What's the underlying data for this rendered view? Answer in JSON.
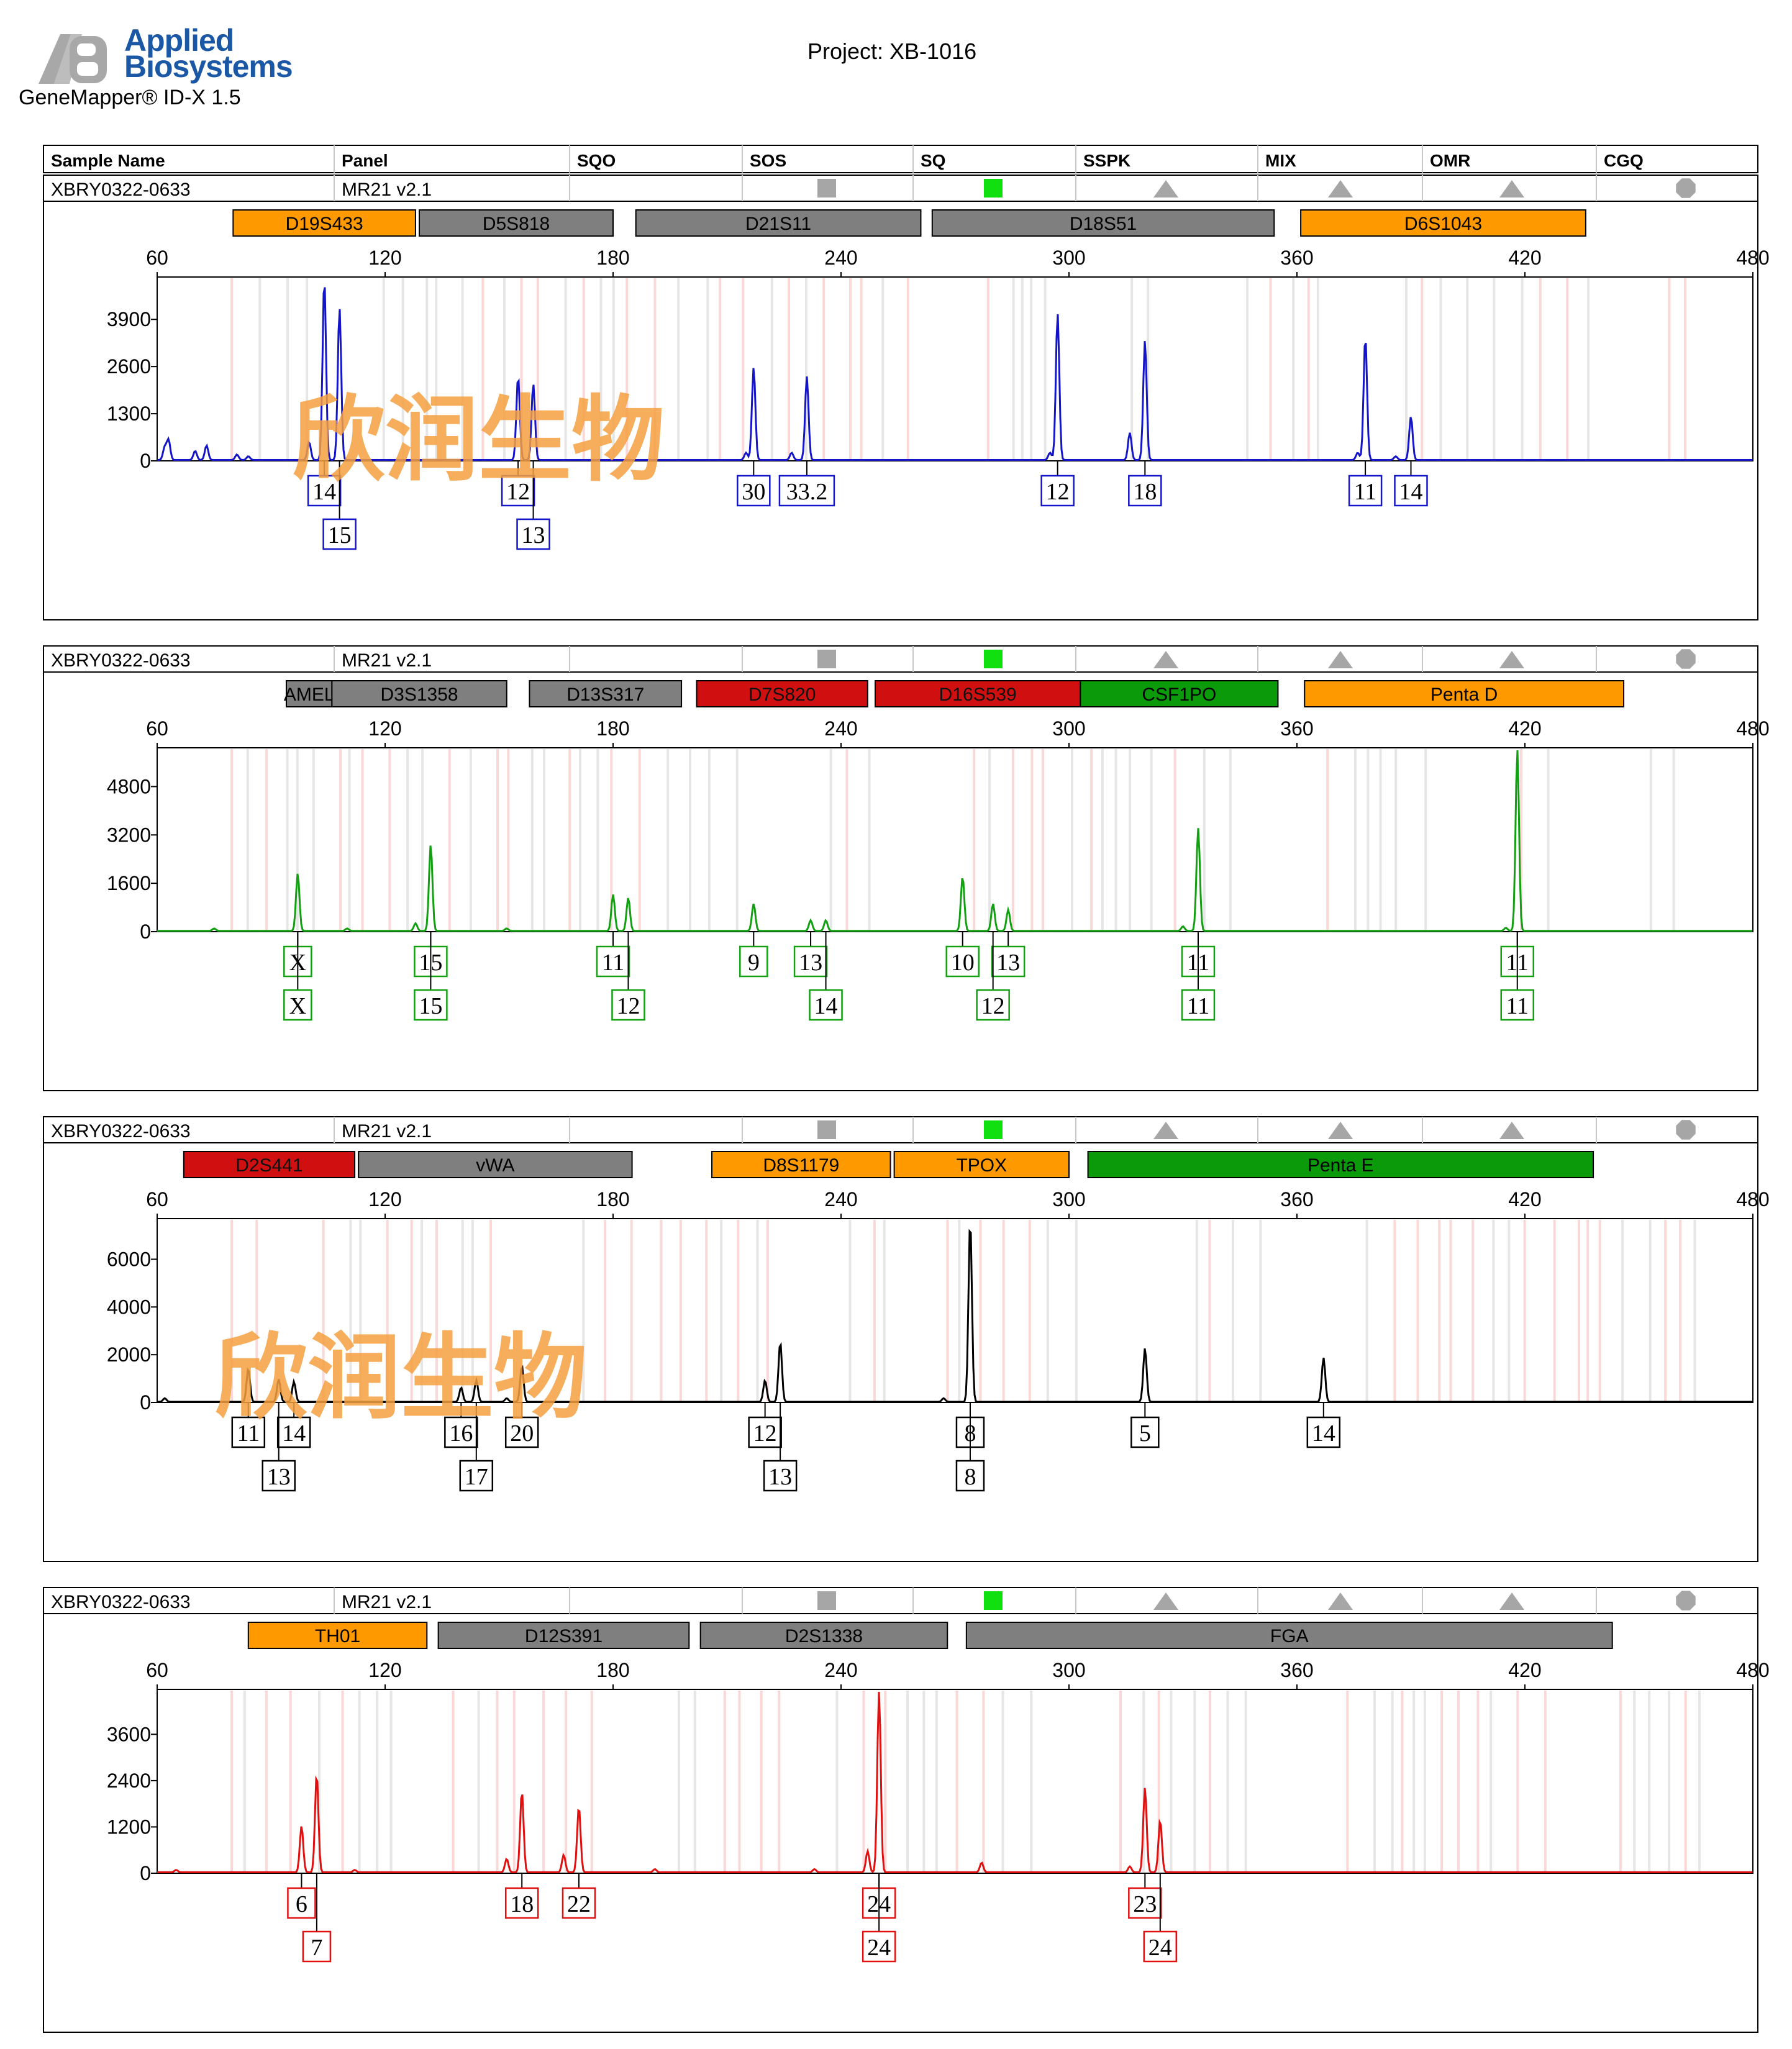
{
  "header": {
    "brand_line1": "Applied",
    "brand_line2": "Biosystems",
    "product": "GeneMapper® ID-X  1.5",
    "project": "Project: XB-1016"
  },
  "table_header": [
    "Sample Name",
    "Panel",
    "SQO",
    "SOS",
    "SQ",
    "SSPK",
    "MIX",
    "OMR",
    "CGQ"
  ],
  "watermark": "欣润生物",
  "colors": {
    "blue": "#1414c8",
    "green": "#12a012",
    "black": "#000000",
    "red": "#e01010",
    "marker_orange": "#ff9900",
    "marker_gray": "#7f7f7f",
    "marker_red": "#d01010",
    "marker_green": "#0a9a0a",
    "sq_green": "#10e010",
    "indicator_gray": "#a6a6a6",
    "watermark": "#f5a040"
  },
  "chart_data": [
    {
      "type": "line",
      "sample": "XBRY0322-0633",
      "panel": "MR21  v2.1",
      "dye": "blue",
      "xlim": [
        60,
        480
      ],
      "xticks": [
        60,
        120,
        180,
        240,
        300,
        360,
        420,
        480
      ],
      "yticks": [
        0,
        1300,
        2600,
        3900
      ],
      "ylim": [
        0,
        5000
      ],
      "markers": [
        {
          "name": "D19S433",
          "start": 80,
          "end": 128,
          "color": "orange"
        },
        {
          "name": "D5S818",
          "start": 129,
          "end": 180,
          "color": "gray"
        },
        {
          "name": "D21S11",
          "start": 186,
          "end": 261,
          "color": "gray"
        },
        {
          "name": "D18S51",
          "start": 264,
          "end": 354,
          "color": "gray"
        },
        {
          "name": "D6S1043",
          "start": 361,
          "end": 436,
          "color": "orange"
        }
      ],
      "peaks": [
        {
          "x": 104,
          "y": 5000
        },
        {
          "x": 108,
          "y": 4200
        },
        {
          "x": 100,
          "y": 500
        },
        {
          "x": 155,
          "y": 2300
        },
        {
          "x": 159,
          "y": 2100
        },
        {
          "x": 217,
          "y": 2550
        },
        {
          "x": 231,
          "y": 2300
        },
        {
          "x": 227,
          "y": 200
        },
        {
          "x": 215,
          "y": 200
        },
        {
          "x": 297,
          "y": 4050
        },
        {
          "x": 295,
          "y": 200
        },
        {
          "x": 320,
          "y": 3300
        },
        {
          "x": 316,
          "y": 750
        },
        {
          "x": 378,
          "y": 3400
        },
        {
          "x": 376,
          "y": 200
        },
        {
          "x": 390,
          "y": 1200
        },
        {
          "x": 386,
          "y": 100
        },
        {
          "x": 62,
          "y": 350
        },
        {
          "x": 63,
          "y": 550
        },
        {
          "x": 70,
          "y": 250
        },
        {
          "x": 73,
          "y": 400
        },
        {
          "x": 81,
          "y": 150
        },
        {
          "x": 84,
          "y": 100
        }
      ],
      "calls": [
        {
          "label": "14",
          "x": 104,
          "row": 1
        },
        {
          "label": "15",
          "x": 108,
          "row": 2
        },
        {
          "label": "12",
          "x": 155,
          "row": 1
        },
        {
          "label": "13",
          "x": 159,
          "row": 2
        },
        {
          "label": "30",
          "x": 217,
          "row": 1
        },
        {
          "label": "33.2",
          "x": 231,
          "row": 1
        },
        {
          "label": "12",
          "x": 297,
          "row": 1
        },
        {
          "label": "18",
          "x": 320,
          "row": 1
        },
        {
          "label": "11",
          "x": 378,
          "row": 1
        },
        {
          "label": "14",
          "x": 390,
          "row": 1
        }
      ]
    },
    {
      "type": "line",
      "sample": "XBRY0322-0633",
      "panel": "MR21  v2.1",
      "dye": "green",
      "xlim": [
        60,
        480
      ],
      "xticks": [
        60,
        120,
        180,
        240,
        300,
        360,
        420,
        480
      ],
      "yticks": [
        0,
        1600,
        3200,
        4800
      ],
      "ylim": [
        0,
        6000
      ],
      "markers": [
        {
          "name": "AMEL",
          "start": 94,
          "end": 106,
          "color": "gray"
        },
        {
          "name": "D3S1358",
          "start": 106,
          "end": 152,
          "color": "gray"
        },
        {
          "name": "D13S317",
          "start": 158,
          "end": 198,
          "color": "gray"
        },
        {
          "name": "D7S820",
          "start": 202,
          "end": 247,
          "color": "red"
        },
        {
          "name": "D16S539",
          "start": 249,
          "end": 303,
          "color": "red"
        },
        {
          "name": "CSF1PO",
          "start": 303,
          "end": 355,
          "color": "green"
        },
        {
          "name": "Penta D",
          "start": 362,
          "end": 446,
          "color": "orange"
        }
      ],
      "peaks": [
        {
          "x": 97,
          "y": 1900
        },
        {
          "x": 132,
          "y": 2850
        },
        {
          "x": 128,
          "y": 250
        },
        {
          "x": 180,
          "y": 1200
        },
        {
          "x": 184,
          "y": 1100
        },
        {
          "x": 217,
          "y": 900
        },
        {
          "x": 232,
          "y": 350
        },
        {
          "x": 236,
          "y": 350
        },
        {
          "x": 272,
          "y": 1800
        },
        {
          "x": 280,
          "y": 900
        },
        {
          "x": 284,
          "y": 700
        },
        {
          "x": 334,
          "y": 3400
        },
        {
          "x": 330,
          "y": 150
        },
        {
          "x": 418,
          "y": 6000
        },
        {
          "x": 415,
          "y": 100
        },
        {
          "x": 75,
          "y": 80
        },
        {
          "x": 110,
          "y": 80
        },
        {
          "x": 152,
          "y": 80
        }
      ],
      "calls": [
        {
          "label": "X",
          "x": 97,
          "row": 1
        },
        {
          "label": "X",
          "x": 97,
          "row": 2
        },
        {
          "label": "15",
          "x": 132,
          "row": 1
        },
        {
          "label": "15",
          "x": 132,
          "row": 2
        },
        {
          "label": "11",
          "x": 180,
          "row": 1
        },
        {
          "label": "12",
          "x": 184,
          "row": 2
        },
        {
          "label": "9",
          "x": 217,
          "row": 1
        },
        {
          "label": "13",
          "x": 232,
          "row": 1
        },
        {
          "label": "14",
          "x": 236,
          "row": 2
        },
        {
          "label": "10",
          "x": 272,
          "row": 1
        },
        {
          "label": "13",
          "x": 284,
          "row": 1
        },
        {
          "label": "12",
          "x": 280,
          "row": 2
        },
        {
          "label": "11",
          "x": 334,
          "row": 1
        },
        {
          "label": "11",
          "x": 334,
          "row": 2
        },
        {
          "label": "11",
          "x": 418,
          "row": 1
        },
        {
          "label": "11",
          "x": 418,
          "row": 2
        }
      ]
    },
    {
      "type": "line",
      "sample": "XBRY0322-0633",
      "panel": "MR21  v2.1",
      "dye": "black",
      "xlim": [
        60,
        480
      ],
      "xticks": [
        60,
        120,
        180,
        240,
        300,
        360,
        420,
        480
      ],
      "yticks": [
        0,
        2000,
        4000,
        6000
      ],
      "ylim": [
        0,
        7600
      ],
      "markers": [
        {
          "name": "D2S441",
          "start": 67,
          "end": 112,
          "color": "red"
        },
        {
          "name": "vWA",
          "start": 113,
          "end": 185,
          "color": "gray"
        },
        {
          "name": "D8S1179",
          "start": 206,
          "end": 253,
          "color": "orange"
        },
        {
          "name": "TPOX",
          "start": 254,
          "end": 300,
          "color": "orange"
        },
        {
          "name": "Penta E",
          "start": 305,
          "end": 438,
          "color": "green"
        }
      ],
      "peaks": [
        {
          "x": 84,
          "y": 1400
        },
        {
          "x": 92,
          "y": 950
        },
        {
          "x": 96,
          "y": 850
        },
        {
          "x": 140,
          "y": 600
        },
        {
          "x": 144,
          "y": 900
        },
        {
          "x": 156,
          "y": 1500
        },
        {
          "x": 152,
          "y": 150
        },
        {
          "x": 220,
          "y": 900
        },
        {
          "x": 224,
          "y": 2500
        },
        {
          "x": 274,
          "y": 7600
        },
        {
          "x": 267,
          "y": 150
        },
        {
          "x": 320,
          "y": 2250
        },
        {
          "x": 367,
          "y": 1850
        },
        {
          "x": 62,
          "y": 150
        }
      ],
      "calls": [
        {
          "label": "11",
          "x": 84,
          "row": 1
        },
        {
          "label": "14",
          "x": 96,
          "row": 1
        },
        {
          "label": "13",
          "x": 92,
          "row": 2
        },
        {
          "label": "16",
          "x": 140,
          "row": 1
        },
        {
          "label": "20",
          "x": 156,
          "row": 1
        },
        {
          "label": "17",
          "x": 144,
          "row": 2
        },
        {
          "label": "12",
          "x": 220,
          "row": 1
        },
        {
          "label": "13",
          "x": 224,
          "row": 2
        },
        {
          "label": "8",
          "x": 274,
          "row": 1
        },
        {
          "label": "8",
          "x": 274,
          "row": 2
        },
        {
          "label": "5",
          "x": 320,
          "row": 1
        },
        {
          "label": "14",
          "x": 367,
          "row": 1
        }
      ]
    },
    {
      "type": "line",
      "sample": "XBRY0322-0633",
      "panel": "MR21  v2.1",
      "dye": "red",
      "xlim": [
        60,
        480
      ],
      "xticks": [
        60,
        120,
        180,
        240,
        300,
        360,
        420,
        480
      ],
      "yticks": [
        0,
        1200,
        2400,
        3600
      ],
      "ylim": [
        0,
        4700
      ],
      "markers": [
        {
          "name": "TH01",
          "start": 84,
          "end": 131,
          "color": "orange"
        },
        {
          "name": "D12S391",
          "start": 134,
          "end": 200,
          "color": "gray"
        },
        {
          "name": "D2S1338",
          "start": 203,
          "end": 268,
          "color": "gray"
        },
        {
          "name": "FGA",
          "start": 273,
          "end": 443,
          "color": "gray"
        }
      ],
      "peaks": [
        {
          "x": 98,
          "y": 1200
        },
        {
          "x": 102,
          "y": 2550
        },
        {
          "x": 152,
          "y": 350
        },
        {
          "x": 156,
          "y": 2100
        },
        {
          "x": 167,
          "y": 450
        },
        {
          "x": 171,
          "y": 1700
        },
        {
          "x": 247,
          "y": 550
        },
        {
          "x": 250,
          "y": 4700
        },
        {
          "x": 277,
          "y": 250
        },
        {
          "x": 316,
          "y": 150
        },
        {
          "x": 320,
          "y": 2200
        },
        {
          "x": 324,
          "y": 1350
        },
        {
          "x": 65,
          "y": 60
        },
        {
          "x": 112,
          "y": 60
        },
        {
          "x": 191,
          "y": 80
        },
        {
          "x": 233,
          "y": 80
        }
      ],
      "calls": [
        {
          "label": "6",
          "x": 98,
          "row": 1
        },
        {
          "label": "7",
          "x": 102,
          "row": 2
        },
        {
          "label": "18",
          "x": 156,
          "row": 1
        },
        {
          "label": "22",
          "x": 171,
          "row": 1
        },
        {
          "label": "24",
          "x": 250,
          "row": 1
        },
        {
          "label": "24",
          "x": 250,
          "row": 2
        },
        {
          "label": "23",
          "x": 320,
          "row": 1
        },
        {
          "label": "24",
          "x": 324,
          "row": 2
        }
      ]
    }
  ]
}
